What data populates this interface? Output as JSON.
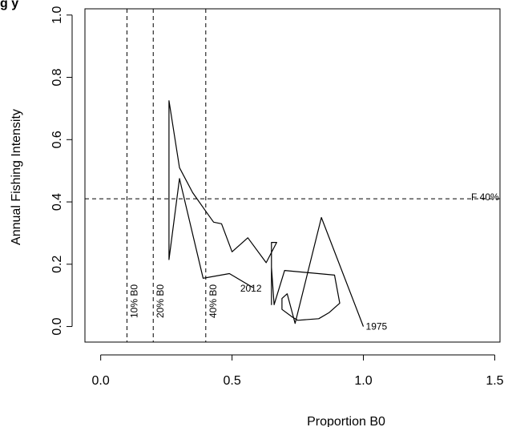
{
  "chart_data": {
    "type": "line",
    "title_fragment": "g   y",
    "xlabel": "Proportion B0",
    "ylabel": "Annual Fishing Intensity",
    "xlim": [
      -0.06,
      1.52
    ],
    "ylim": [
      -0.05,
      1.02
    ],
    "x_ticks": [
      0.0,
      0.5,
      1.0,
      1.5
    ],
    "x_tick_labels": [
      "0.0",
      "0.5",
      "1.0",
      "1.5"
    ],
    "y_ticks": [
      0.0,
      0.2,
      0.4,
      0.6,
      0.8,
      1.0
    ],
    "y_tick_labels": [
      "0.0",
      "0.2",
      "0.4",
      "0.6",
      "0.8",
      "1.0"
    ],
    "grid": false,
    "reference_lines": {
      "vertical": [
        {
          "x": 0.1,
          "label": "10% B0"
        },
        {
          "x": 0.2,
          "label": "20% B0"
        },
        {
          "x": 0.4,
          "label": "40% B0"
        }
      ],
      "horizontal": [
        {
          "y": 0.41,
          "label": "F 40%"
        }
      ]
    },
    "series": [
      {
        "points": [
          [
            1.0,
            0.0
          ],
          [
            0.84,
            0.35
          ],
          [
            0.74,
            0.01
          ],
          [
            0.71,
            0.105
          ],
          [
            0.69,
            0.09
          ],
          [
            0.69,
            0.055
          ],
          [
            0.73,
            0.03
          ],
          [
            0.75,
            0.02
          ],
          [
            0.83,
            0.025
          ],
          [
            0.87,
            0.045
          ],
          [
            0.91,
            0.075
          ],
          [
            0.89,
            0.165
          ],
          [
            0.7,
            0.18
          ],
          [
            0.66,
            0.07
          ],
          [
            0.65,
            0.19
          ],
          [
            0.65,
            0.135
          ],
          [
            0.65,
            0.07
          ],
          [
            0.65,
            0.27
          ],
          [
            0.67,
            0.27
          ],
          [
            0.63,
            0.205
          ],
          [
            0.56,
            0.285
          ],
          [
            0.5,
            0.24
          ],
          [
            0.46,
            0.33
          ],
          [
            0.43,
            0.335
          ],
          [
            0.4,
            0.37
          ],
          [
            0.35,
            0.43
          ],
          [
            0.3,
            0.51
          ],
          [
            0.26,
            0.725
          ],
          [
            0.26,
            0.215
          ],
          [
            0.3,
            0.475
          ],
          [
            0.39,
            0.155
          ],
          [
            0.49,
            0.17
          ],
          [
            0.58,
            0.125
          ]
        ],
        "start_label": "1975",
        "end_label": "2012"
      }
    ]
  }
}
